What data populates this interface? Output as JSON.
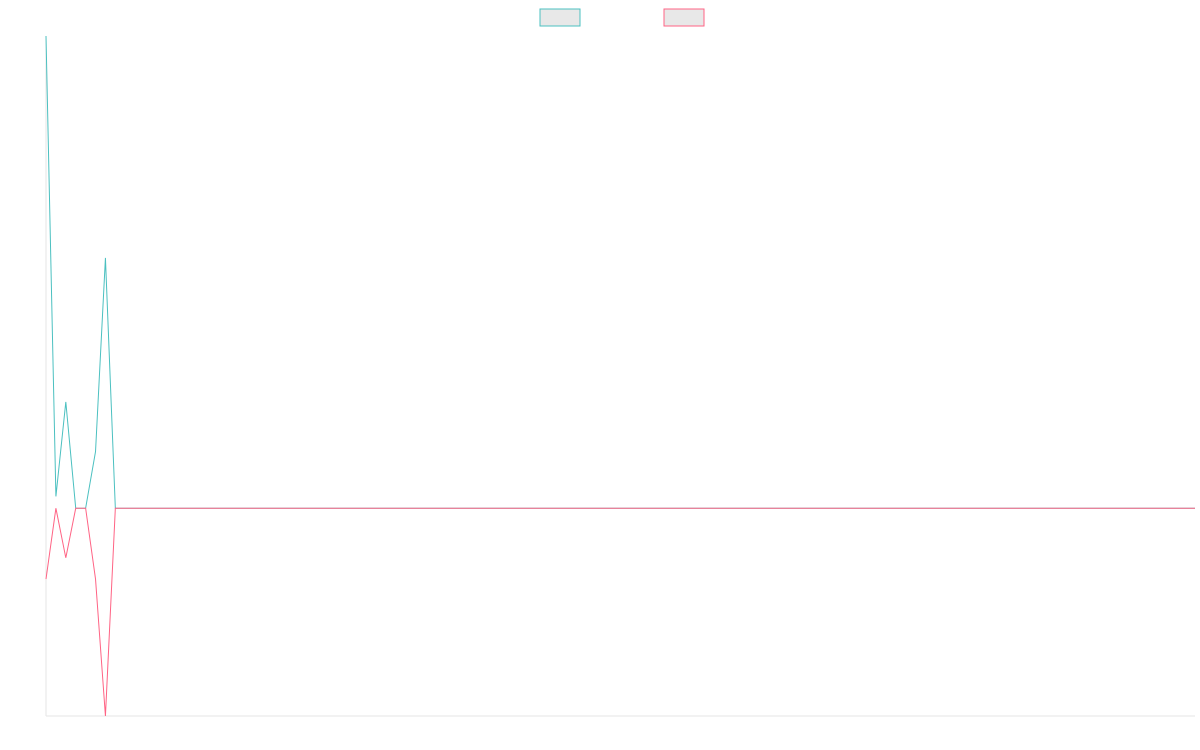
{
  "chart_data": {
    "type": "line",
    "x": [
      0,
      1,
      2,
      3,
      4,
      5,
      6,
      7,
      19,
      21,
      116
    ],
    "series": [
      {
        "color": "#4bc0c0",
        "values": [
          100,
          2.5,
          22.5,
          0,
          0,
          12,
          53,
          0,
          0,
          0,
          0
        ]
      },
      {
        "color": "#ff6384",
        "values": [
          -15,
          0,
          -10.5,
          0,
          0,
          -15,
          -44,
          0,
          0,
          0,
          0
        ]
      }
    ],
    "xlim": [
      0,
      116
    ],
    "ylim": [
      -44,
      100
    ],
    "grid": false,
    "legend": "top"
  }
}
